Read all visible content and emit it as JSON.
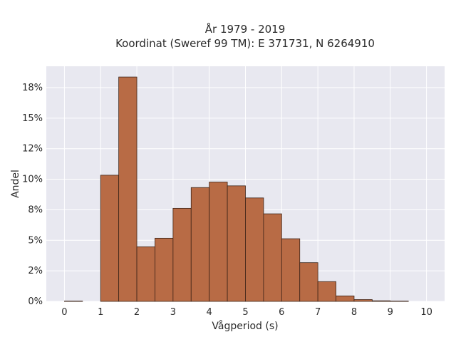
{
  "chart_data": {
    "type": "bar",
    "title_line1": "År 1979 - 2019",
    "title_line2": "Koordinat (Sweref 99 TM): E 371731, N 6264910",
    "xlabel": "Vågperiod (s)",
    "ylabel": "Andel",
    "x_ticks": [
      "0",
      "1",
      "2",
      "3",
      "4",
      "5",
      "6",
      "7",
      "8",
      "9",
      "10"
    ],
    "y_ticks": [
      "0%",
      "2%",
      "5%",
      "8%",
      "10%",
      "12%",
      "15%",
      "18%"
    ],
    "xlim": [
      -0.5,
      10.5
    ],
    "ylim": [
      0,
      0.1925
    ],
    "bin_width": 0.5,
    "bins": [
      {
        "start": 0.0,
        "value": 0.0003
      },
      {
        "start": 0.5,
        "value": 0.0
      },
      {
        "start": 1.0,
        "value": 0.1033
      },
      {
        "start": 1.5,
        "value": 0.1837
      },
      {
        "start": 2.0,
        "value": 0.0447
      },
      {
        "start": 2.5,
        "value": 0.0517
      },
      {
        "start": 3.0,
        "value": 0.0762
      },
      {
        "start": 3.5,
        "value": 0.0932
      },
      {
        "start": 4.0,
        "value": 0.0977
      },
      {
        "start": 4.5,
        "value": 0.0946
      },
      {
        "start": 5.0,
        "value": 0.0847
      },
      {
        "start": 5.5,
        "value": 0.0717
      },
      {
        "start": 6.0,
        "value": 0.0513
      },
      {
        "start": 6.5,
        "value": 0.0317
      },
      {
        "start": 7.0,
        "value": 0.0162
      },
      {
        "start": 7.5,
        "value": 0.0045
      },
      {
        "start": 8.0,
        "value": 0.0015
      },
      {
        "start": 8.5,
        "value": 0.0005
      },
      {
        "start": 9.0,
        "value": 0.0003
      }
    ],
    "colors": {
      "bar_fill": "#b86b45",
      "bar_stroke": "#3d2418",
      "plot_background": "#e8e8f0",
      "grid": "#ffffff"
    },
    "grid": true
  }
}
